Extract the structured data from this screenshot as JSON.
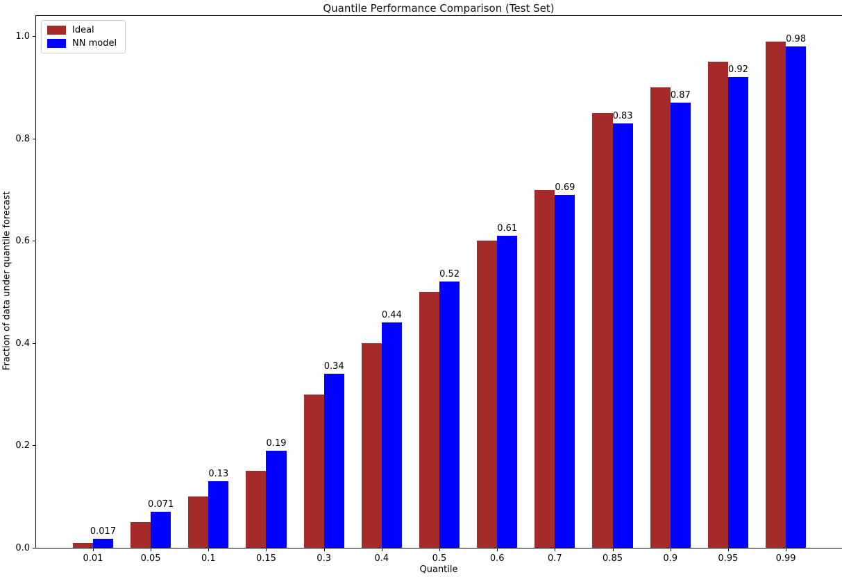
{
  "chart_data": {
    "type": "bar",
    "title": "Quantile Performance Comparison (Test Set)",
    "xlabel": "Quantile",
    "ylabel": "Fraction of data under quantile forecast",
    "categories": [
      "0.01",
      "0.05",
      "0.1",
      "0.15",
      "0.3",
      "0.4",
      "0.5",
      "0.6",
      "0.7",
      "0.85",
      "0.9",
      "0.95",
      "0.99"
    ],
    "series": [
      {
        "name": "Ideal",
        "color": "#A52A2A",
        "values": [
          0.01,
          0.05,
          0.1,
          0.15,
          0.3,
          0.4,
          0.5,
          0.6,
          0.7,
          0.85,
          0.9,
          0.95,
          0.99
        ]
      },
      {
        "name": "NN model",
        "color": "#0000FF",
        "values": [
          0.017,
          0.071,
          0.13,
          0.19,
          0.34,
          0.44,
          0.52,
          0.61,
          0.69,
          0.83,
          0.87,
          0.92,
          0.98
        ],
        "bar_labels": [
          "0.017",
          "0.071",
          "0.13",
          "0.19",
          "0.34",
          "0.44",
          "0.52",
          "0.61",
          "0.69",
          "0.83",
          "0.87",
          "0.92",
          "0.98"
        ]
      }
    ],
    "yticks": [
      "0.0",
      "0.2",
      "0.4",
      "0.6",
      "0.8",
      "1.0"
    ],
    "ylim": [
      0,
      1.0395
    ],
    "xlim_units": [
      -0.985,
      12.985
    ],
    "bar_width_units": 0.35,
    "legend_position": "upper left",
    "grid": false,
    "axis_color": "#000000",
    "background_color": "#ffffff"
  }
}
